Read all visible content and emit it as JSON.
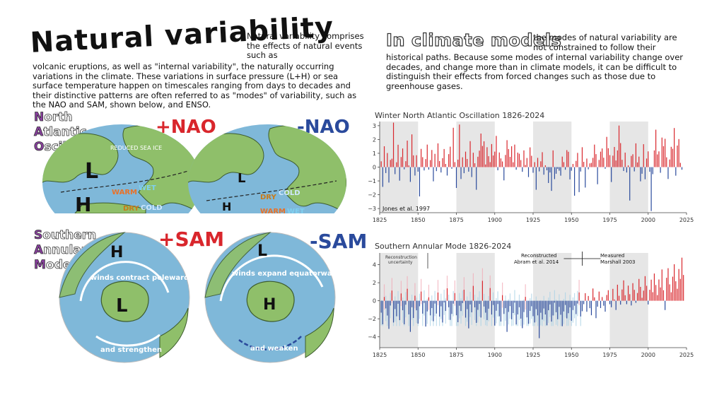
{
  "title": "Natural variability",
  "intro_right": "Natural variability comprises the effects of natural events such as",
  "intro_main": "volcanic eruptions, as well as \"internal variability\", the naturally occurring variations in the climate. These variations in surface pressure (L+H) or sea surface temperature happen on timescales ranging from days to decades and their distinctive patterns are often referred to as \"modes\" of variability, such as the NAO and SAM, shown below, and ENSO.",
  "climate_models": {
    "title": "In climate models",
    "text_1": "the modes of natural variability are not constrained to follow their",
    "text_2": "historical paths. Because some modes of internal variability change over decades, and change more than in climate models, it can be difficult to distinguish their effects from forced changes such as those due to greenhouse gases."
  },
  "nao": {
    "label": [
      "North",
      "Atlantic",
      "Oscillation"
    ],
    "caps": [
      "N",
      "A",
      "O"
    ],
    "rests": [
      "orth",
      "tlantic",
      "scillation"
    ],
    "pos_sign": "+NAO",
    "neg_sign": "-NAO",
    "pos_map": {
      "low": "L",
      "high": "H",
      "warm": "WARM",
      "wet": "WET",
      "dry": "DRY",
      "cold": "COLD",
      "sea_ice": "REDUCED SEA ICE"
    },
    "neg_map": {
      "low": "L",
      "high": "H",
      "warm": "WARM",
      "wet": "WET",
      "dry": "DRY",
      "cold": "COLD"
    }
  },
  "sam": {
    "caps": [
      "S",
      "A",
      "M"
    ],
    "rests": [
      "outhern",
      "nnular",
      "ode"
    ],
    "pos_sign": "+SAM",
    "neg_sign": "-SAM",
    "pos_map": {
      "high": "H",
      "low": "L",
      "arrow_top": "winds contract poleward",
      "arrow_bottom": "and strengthen"
    },
    "neg_map": {
      "high": "H",
      "low": "L",
      "arrow_top": "winds expand equatorward",
      "arrow_bottom": "and weaken"
    }
  },
  "colors": {
    "positive": "#d9262c",
    "negative": "#2a4a9c",
    "recon_pos": "#f2a9b6",
    "recon_neg": "#a9d1e6",
    "shade": "#e6e6e6",
    "ocean": "#7fb8d9",
    "land": "#8fbf6a"
  },
  "chart_data": [
    {
      "type": "bar",
      "title": "Winter North Atlantic Oscillation 1826-2024",
      "annotation": "Jones et al. 1997",
      "xlim": [
        1825,
        2025
      ],
      "ylim": [
        -3.3,
        3.3
      ],
      "xticks": [
        "1825",
        "1850",
        "1875",
        "1900",
        "1925",
        "1950",
        "1975",
        "2000",
        "2025"
      ],
      "yticks": [
        "3",
        "2",
        "1",
        "0",
        "−1",
        "−2",
        "−3"
      ],
      "shaded_periods": [
        [
          1825,
          1850
        ],
        [
          1875,
          1900
        ],
        [
          1925,
          1950
        ],
        [
          1975,
          2000
        ]
      ],
      "x_start": 1826,
      "values": [
        0.42,
        -1.43,
        1.51,
        -0.43,
        1.02,
        -1.12,
        0.52,
        0.61,
        3.22,
        -0.51,
        0.35,
        1.62,
        -0.98,
        0.73,
        1.35,
        -0.16,
        0.43,
        1.92,
        0.12,
        -1.07,
        2.37,
        0.85,
        -0.61,
        0.86,
        -0.33,
        -2.12,
        1.32,
        0.72,
        -0.24,
        0.58,
        1.63,
        -0.18,
        0.51,
        1.24,
        -1.03,
        0.96,
        -0.29,
        1.72,
        0.44,
        -0.39,
        0.65,
        1.31,
        0.23,
        -0.61,
        0.94,
        1.48,
        -0.12,
        2.85,
        0.36,
        -1.51,
        0.54,
        3.08,
        -0.86,
        0.71,
        -0.44,
        1.12,
        0.59,
        -0.33,
        1.88,
        -0.72,
        1.04,
        0.28,
        -1.64,
        0.75,
        1.19,
        2.43,
        1.53,
        1.87,
        0.19,
        1.44,
        0.79,
        0.36,
        1.67,
        0.84,
        1.12,
        2.26,
        -0.23,
        1.06,
        0.63,
        0.41,
        -0.96,
        0.88,
        1.95,
        1.31,
        0.74,
        1.51,
        0.35,
        1.63,
        -0.19,
        1.05,
        0.97,
        0.51,
        -0.34,
        1.21,
        0.15,
        0.66,
        -0.72,
        1.43,
        0.82,
        -0.41,
        0.36,
        -1.64,
        0.67,
        -0.31,
        0.42,
        1.08,
        -0.55,
        0.13,
        -0.23,
        -1.15,
        -0.39,
        -1.72,
        1.21,
        -0.87,
        -0.48,
        -0.12,
        -0.26,
        -0.62,
        0.76,
        0.36,
        -0.19,
        1.23,
        1.11,
        -0.89,
        -0.26,
        0.23,
        -2.07,
        0.45,
        1.03,
        -1.81,
        -0.32,
        1.44,
        0.38,
        -1.48,
        0.62,
        -0.16,
        0.27,
        0.31,
        0.67,
        1.63,
        0.94,
        -1.24,
        0.52,
        1.12,
        1.35,
        0.68,
        -0.12,
        2.19,
        1.37,
        0.87,
        -1.08,
        0.83,
        1.46,
        0.48,
        1.21,
        3.01,
        1.74,
        0.53,
        -0.28,
        1.05,
        -0.39,
        0.12,
        -2.42,
        0.81,
        0.93,
        -0.31,
        1.72,
        0.34,
        0.76,
        -1.03,
        -0.48,
        1.66,
        -0.88,
        0.62,
        1.14,
        -0.34,
        -3.18,
        -0.51,
        1.21,
        2.71,
        0.92,
        1.14,
        -0.41,
        2.14,
        1.52,
        2.05,
        0.71,
        -0.86,
        0.55,
        1.47,
        1.33,
        2.83,
        -0.62,
        1.56,
        2.03,
        0.31,
        -0.19
      ],
      "xlabel": "",
      "ylabel": ""
    },
    {
      "type": "bar",
      "title": "Southern Annular Mode 1826-2024",
      "annotations": {
        "uncertainty": [
          "Reconstruction",
          "uncertainty"
        ],
        "reconstructed": [
          "Reconstructed",
          "Abram et al. 2014"
        ],
        "measured": [
          "Measured",
          "Marshall 2003"
        ]
      },
      "xlim": [
        1825,
        2025
      ],
      "ylim": [
        -5.2,
        5.3
      ],
      "xticks": [
        "1825",
        "1850",
        "1875",
        "1900",
        "1925",
        "1950",
        "1975",
        "2000",
        "2025"
      ],
      "yticks": [
        "4",
        "2",
        "0",
        "−2",
        "−4"
      ],
      "shaded_periods": [
        [
          1825,
          1850
        ],
        [
          1875,
          1900
        ],
        [
          1925,
          1950
        ],
        [
          1975,
          2000
        ]
      ],
      "split_year": 1957,
      "x_start": 1826,
      "values": [
        -1.32,
        -2.61,
        0.42,
        -0.85,
        -1.64,
        -3.12,
        -0.53,
        1.13,
        -2.41,
        -0.92,
        -1.72,
        -0.33,
        -2.15,
        0.81,
        -1.05,
        -2.61,
        -0.44,
        1.33,
        -1.51,
        -3.45,
        -0.72,
        -1.91,
        0.56,
        -1.06,
        -2.53,
        -0.61,
        1.02,
        -1.43,
        -0.24,
        -2.86,
        -1.18,
        0.38,
        -1.62,
        -0.81,
        -2.27,
        -0.31,
        -1.42,
        0.91,
        -1.76,
        -0.62,
        -2.41,
        -0.18,
        -1.13,
        1.38,
        -0.72,
        -2.12,
        -1.46,
        -0.32,
        0.85,
        -1.61,
        -2.38,
        -0.55,
        -1.14,
        -0.26,
        1.22,
        -1.87,
        -0.93,
        -3.06,
        -0.41,
        -1.28,
        1.65,
        -0.73,
        -2.45,
        -1.01,
        -0.35,
        -1.86,
        2.21,
        -0.64,
        -1.32,
        -2.14,
        -0.88,
        1.41,
        -1.53,
        -0.47,
        -2.75,
        -1.11,
        -0.36,
        -1.72,
        -2.31,
        0.62,
        -1.46,
        -0.82,
        -3.45,
        -1.24,
        -0.59,
        -2.05,
        -1.36,
        -0.21,
        -2.63,
        -1.51,
        -0.72,
        -1.98,
        -3.04,
        -1.25,
        0.43,
        -1.84,
        -2.56,
        -1.12,
        -0.61,
        -1.71,
        -2.41,
        -0.93,
        -1.62,
        -4.15,
        -1.33,
        -2.08,
        -0.86,
        -1.52,
        -2.72,
        -1.05,
        -0.41,
        -2.31,
        -1.63,
        -0.22,
        -1.27,
        -2.05,
        -0.68,
        -1.55,
        -2.82,
        -1.19,
        -0.47,
        -1.95,
        -1.38,
        -0.74,
        -2.22,
        -1.03,
        -0.55,
        -1.48,
        -0.31,
        0.92,
        -1.74,
        -1.16,
        -0.38,
        0.84,
        -1.22,
        0.53,
        -0.82,
        -1.61,
        1.36,
        0.38,
        -1.93,
        -0.66,
        1.02,
        -0.81,
        0.41,
        -0.55,
        -1.21,
        0.64,
        1.17,
        -0.38,
        -0.72,
        1.32,
        0.14,
        -1.02,
        1.78,
        0.55,
        -0.43,
        1.25,
        2.26,
        0.61,
        -0.38,
        1.68,
        0.73,
        -0.52,
        1.95,
        1.21,
        -0.23,
        0.86,
        2.42,
        1.54,
        0.33,
        1.12,
        2.73,
        1.66,
        -0.41,
        1.22,
        2.34,
        0.95,
        3.02,
        1.75,
        0.63,
        2.36,
        1.48,
        3.47,
        1.17,
        -1.03,
        2.55,
        3.61,
        1.82,
        0.94,
        2.67,
        4.05,
        2.16,
        1.33,
        3.52,
        2.43,
        4.78,
        2.86
      ],
      "xlabel": "",
      "ylabel": ""
    }
  ]
}
